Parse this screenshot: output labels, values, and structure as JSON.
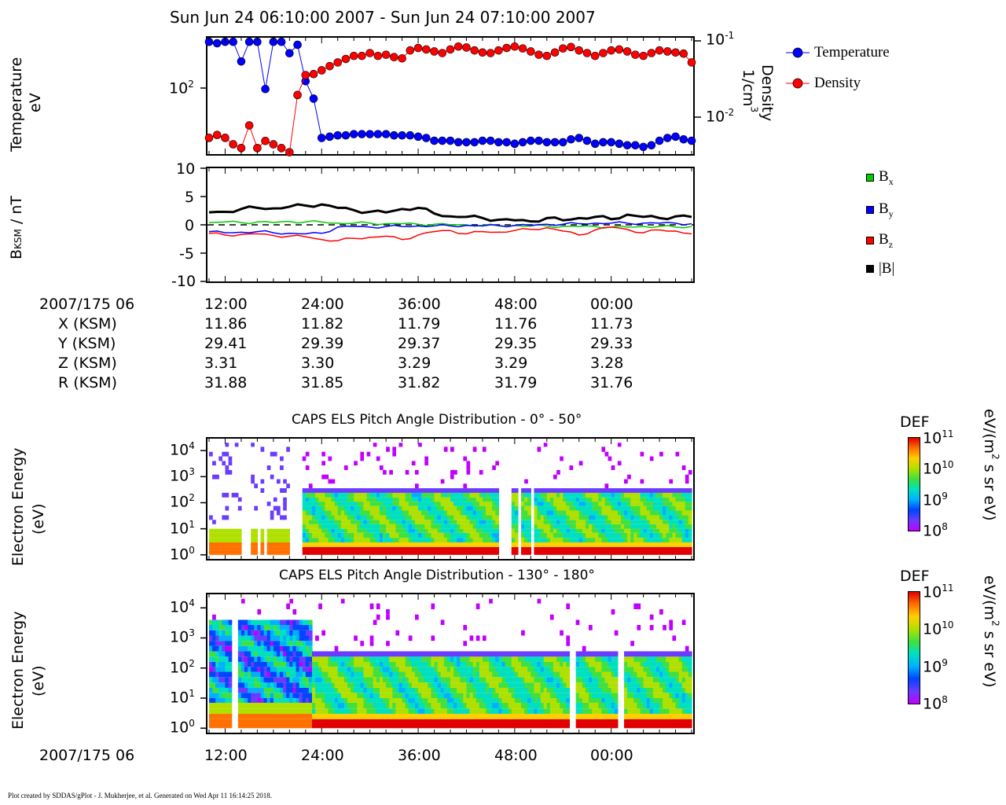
{
  "header": {
    "title": "Sun Jun 24 06:10:00 2007 - Sun Jun 24 07:10:00 2007"
  },
  "footer": {
    "text": "Plot created by SDDAS/gPlot - J. Mukherjee, et al.  Generated on Wed Apr 11 16:14:25 2018."
  },
  "chart_data": [
    {
      "type": "line",
      "ylabel_left": [
        "Temperature",
        "eV"
      ],
      "ylabel_right": [
        "Density",
        "1/cm3"
      ],
      "left_ticks": [
        {
          "label": "10",
          "exp": "2"
        }
      ],
      "right_ticks": [
        {
          "label": "10",
          "exp": "-1"
        },
        {
          "label": "10",
          "exp": "-2"
        }
      ],
      "left_scale": "log",
      "right_scale": "log",
      "ylim_left": [
        22,
        330
      ],
      "ylim_right": [
        0.0038,
        0.1
      ],
      "legend": [
        "Temperature",
        "Density"
      ],
      "colors": {
        "temperature": "#0000ff",
        "density": "#ff0000"
      },
      "x_minutes": [
        0,
        1,
        2,
        3,
        4,
        5,
        6,
        7,
        8,
        9,
        10,
        11,
        12,
        13,
        14,
        15,
        16,
        17,
        18,
        19,
        20,
        21,
        22,
        23,
        24,
        25,
        26,
        27,
        28,
        29,
        30,
        31,
        32,
        33,
        34,
        35,
        36,
        37,
        38,
        39,
        40,
        41,
        42,
        43,
        44,
        45,
        46,
        47,
        48,
        49,
        50,
        51,
        52,
        53,
        54,
        55,
        56,
        57,
        58,
        59,
        60
      ],
      "series": [
        {
          "name": "Temperature",
          "values": [
            300,
            290,
            300,
            300,
            190,
            300,
            300,
            100,
            300,
            300,
            230,
            280,
            120,
            80,
            32,
            33,
            34,
            34,
            35,
            35,
            35,
            35,
            35,
            34,
            34,
            34,
            33,
            32,
            30,
            30,
            30,
            29,
            29,
            29,
            30,
            30,
            29,
            29,
            28,
            29,
            30,
            30,
            29,
            29,
            29,
            31,
            32,
            30,
            28,
            29,
            29,
            28,
            27,
            27,
            26,
            27,
            30,
            32,
            33,
            31,
            30
          ]
        },
        {
          "name": "Density",
          "values": [
            0.006,
            0.0065,
            0.006,
            0.005,
            0.0045,
            0.0085,
            0.0045,
            0.0055,
            0.005,
            0.0045,
            0.004,
            0.02,
            0.035,
            0.036,
            0.04,
            0.045,
            0.05,
            0.055,
            0.06,
            0.06,
            0.065,
            0.06,
            0.062,
            0.058,
            0.056,
            0.07,
            0.075,
            0.072,
            0.068,
            0.065,
            0.072,
            0.078,
            0.076,
            0.07,
            0.066,
            0.065,
            0.07,
            0.075,
            0.078,
            0.074,
            0.068,
            0.062,
            0.06,
            0.066,
            0.074,
            0.077,
            0.07,
            0.065,
            0.06,
            0.065,
            0.07,
            0.072,
            0.068,
            0.062,
            0.06,
            0.065,
            0.07,
            0.068,
            0.066,
            0.064,
            0.05
          ]
        }
      ]
    },
    {
      "type": "line",
      "ylabel": "BKSM / nT",
      "ylim": [
        -10,
        10
      ],
      "y_ticks": [
        "10",
        "5",
        "0",
        "-5",
        "-10"
      ],
      "legend": [
        "Bx",
        "By",
        "Bz",
        "|B|"
      ],
      "colors": {
        "Bx": "#00cc00",
        "By": "#0000ff",
        "Bz": "#ff0000",
        "B": "#000000"
      },
      "x_minutes": [
        0,
        2,
        4,
        6,
        8,
        10,
        12,
        14,
        16,
        18,
        20,
        22,
        24,
        26,
        28,
        30,
        32,
        34,
        36,
        38,
        40,
        42,
        44,
        46,
        48,
        50,
        52,
        54,
        56,
        58,
        60
      ],
      "series": [
        {
          "name": "Bx",
          "values": [
            0.4,
            0.5,
            0.4,
            0.5,
            0.4,
            0.6,
            0.5,
            0.5,
            0.3,
            0.3,
            0.3,
            0.2,
            0.2,
            0.1,
            0.1,
            0.0,
            0.0,
            -0.1,
            -0.2,
            -0.1,
            -0.2,
            -0.2,
            -0.3,
            -0.3,
            -0.3,
            -0.4,
            -0.4,
            -0.3,
            -0.3,
            -0.4,
            -0.3
          ]
        },
        {
          "name": "By",
          "values": [
            -1.2,
            -1.4,
            -1.3,
            -1.2,
            -1.4,
            -1.5,
            -1.6,
            -1.5,
            -0.4,
            -0.3,
            -0.4,
            -0.3,
            -0.3,
            -0.2,
            -0.2,
            -0.2,
            -0.1,
            -0.2,
            -0.1,
            -0.1,
            -0.1,
            0.1,
            0.1,
            0.2,
            0.3,
            0.3,
            0.3,
            0.3,
            0.3,
            0.3,
            0.2
          ]
        },
        {
          "name": "Bz",
          "values": [
            -1.5,
            -1.8,
            -1.7,
            -1.6,
            -1.9,
            -2.0,
            -2.1,
            -2.6,
            -2.8,
            -2.4,
            -2.2,
            -2.0,
            -2.6,
            -1.8,
            -1.2,
            -1.0,
            -1.6,
            -1.2,
            -1.3,
            -1.0,
            -0.8,
            -0.5,
            -1.1,
            -1.8,
            -0.9,
            -0.4,
            -0.8,
            -1.4,
            -0.9,
            -1.1,
            -1.6
          ]
        },
        {
          "name": "|B|",
          "values": [
            2.2,
            2.3,
            2.8,
            3.0,
            2.9,
            3.2,
            3.4,
            3.6,
            3.0,
            2.6,
            2.3,
            2.2,
            2.8,
            3.0,
            2.0,
            1.5,
            1.4,
            1.2,
            0.9,
            0.8,
            0.6,
            1.2,
            0.8,
            1.2,
            1.4,
            1.0,
            1.8,
            1.4,
            1.2,
            1.5,
            1.4
          ]
        }
      ]
    },
    {
      "type": "heatmap",
      "title": "CAPS ELS Pitch Angle Distribution - 0° - 50°",
      "ylabel": [
        "Electron Energy",
        "(eV)"
      ],
      "y_ticks": [
        "10^4",
        "10^3",
        "10^2",
        "10^1",
        "10^0"
      ],
      "y_scale": "log",
      "ylim": [
        0.8,
        25000
      ],
      "colorbar": {
        "title": "DEF",
        "units": "eV/(m2 s sr eV)",
        "ticks": [
          "10^11",
          "10^10",
          "10^9",
          "10^8"
        ],
        "range": [
          100000000.0,
          100000000000.0
        ]
      },
      "data_gaps_minutes": [
        [
          4,
          5
        ],
        [
          5.8,
          6.2
        ],
        [
          6.6,
          7
        ],
        [
          10,
          11.5
        ],
        [
          36,
          37.5
        ],
        [
          38.3,
          38.7
        ],
        [
          39.8,
          40.2
        ]
      ],
      "note_rows": [
        {
          "energy": "1-3 eV",
          "level": "1e10-1e11"
        },
        {
          "energy": "3-200 eV",
          "level": "1e9-1e10"
        },
        {
          "energy": "200-300 eV",
          "level": "1e8-1e9"
        }
      ]
    },
    {
      "type": "heatmap",
      "title": "CAPS ELS Pitch Angle Distribution - 130° - 180°",
      "ylabel": [
        "Electron Energy",
        "(eV)"
      ],
      "y_ticks": [
        "10^4",
        "10^3",
        "10^2",
        "10^1",
        "10^0"
      ],
      "y_scale": "log",
      "ylim": [
        0.8,
        25000
      ],
      "colorbar": {
        "title": "DEF",
        "units": "eV/(m2 s sr eV)",
        "ticks": [
          "10^11",
          "10^10",
          "10^9",
          "10^8"
        ],
        "range": [
          100000000.0,
          100000000000.0
        ]
      },
      "data_gaps_minutes": [
        [
          2.8,
          3.2
        ],
        [
          44.8,
          45.2
        ],
        [
          50.8,
          51.2
        ]
      ]
    }
  ],
  "ephemeris": {
    "time_label": "2007/175 06",
    "row_labels": [
      "X (KSM)",
      "Y (KSM)",
      "Z (KSM)",
      "R (KSM)"
    ],
    "times": [
      "12:00",
      "24:00",
      "36:00",
      "48:00",
      "00:00"
    ],
    "x": [
      "11.86",
      "11.82",
      "11.79",
      "11.76",
      "11.73"
    ],
    "y": [
      "29.41",
      "29.39",
      "29.37",
      "29.35",
      "29.33"
    ],
    "z": [
      "3.31",
      "3.30",
      "3.29",
      "3.29",
      "3.28"
    ],
    "r": [
      "31.88",
      "31.85",
      "31.82",
      "31.79",
      "31.76"
    ]
  },
  "bottom_axis": {
    "time_label": "2007/175 06",
    "times": [
      "12:00",
      "24:00",
      "36:00",
      "48:00",
      "00:00"
    ]
  }
}
